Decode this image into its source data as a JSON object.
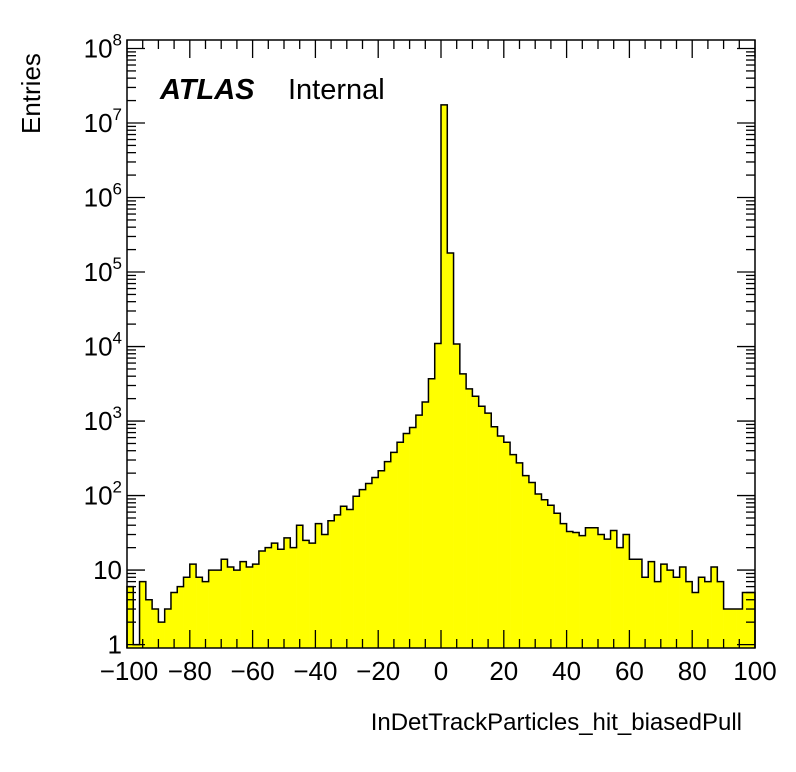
{
  "chart_data": {
    "type": "bar",
    "histogram": true,
    "xlabel": "InDetTrackParticles_hit_biasedPull",
    "ylabel": "Entries",
    "label_bold": "ATLAS",
    "label_plain": "Internal",
    "xlim": [
      -100,
      100
    ],
    "ylim": [
      0.9,
      130000000
    ],
    "yscale": "log",
    "bin_width": 2,
    "fill_color": "#ffff00",
    "line_color": "#000000",
    "x_ticks": [
      -100,
      -80,
      -60,
      -40,
      -20,
      0,
      20,
      40,
      60,
      80,
      100
    ],
    "x_tick_labels": [
      "−100",
      "−80",
      "−60",
      "−40",
      "−20",
      "0",
      "20",
      "40",
      "60",
      "80",
      "100"
    ],
    "y_ticks": [
      {
        "value": 1,
        "base": "1",
        "exp": ""
      },
      {
        "value": 10,
        "base": "10",
        "exp": ""
      },
      {
        "value": 100,
        "base": "10",
        "exp": "2"
      },
      {
        "value": 1000,
        "base": "10",
        "exp": "3"
      },
      {
        "value": 10000,
        "base": "10",
        "exp": "4"
      },
      {
        "value": 100000,
        "base": "10",
        "exp": "5"
      },
      {
        "value": 1000000,
        "base": "10",
        "exp": "6"
      },
      {
        "value": 10000000,
        "base": "10",
        "exp": "7"
      },
      {
        "value": 100000000,
        "base": "10",
        "exp": "8"
      }
    ],
    "bin_edges_start": -100,
    "values": [
      6,
      1,
      7,
      4,
      3,
      2,
      3,
      5,
      6,
      8,
      12,
      8,
      7,
      10,
      10,
      14,
      11,
      10,
      13,
      11,
      12,
      18,
      20,
      23,
      19,
      27,
      20,
      40,
      25,
      23,
      42,
      30,
      46,
      55,
      72,
      65,
      98,
      120,
      145,
      175,
      215,
      285,
      380,
      520,
      680,
      820,
      1200,
      1800,
      3700,
      11000,
      17500000,
      180000,
      10800,
      4300,
      2700,
      2150,
      1580,
      1280,
      840,
      630,
      520,
      355,
      275,
      185,
      150,
      105,
      88,
      74,
      58,
      42,
      33,
      32,
      29,
      37,
      37,
      30,
      26,
      34,
      20,
      30,
      14,
      14,
      8,
      13,
      7,
      12,
      10,
      8,
      11,
      7,
      5,
      8,
      7,
      11,
      7,
      3,
      3,
      3,
      5,
      5
    ]
  }
}
